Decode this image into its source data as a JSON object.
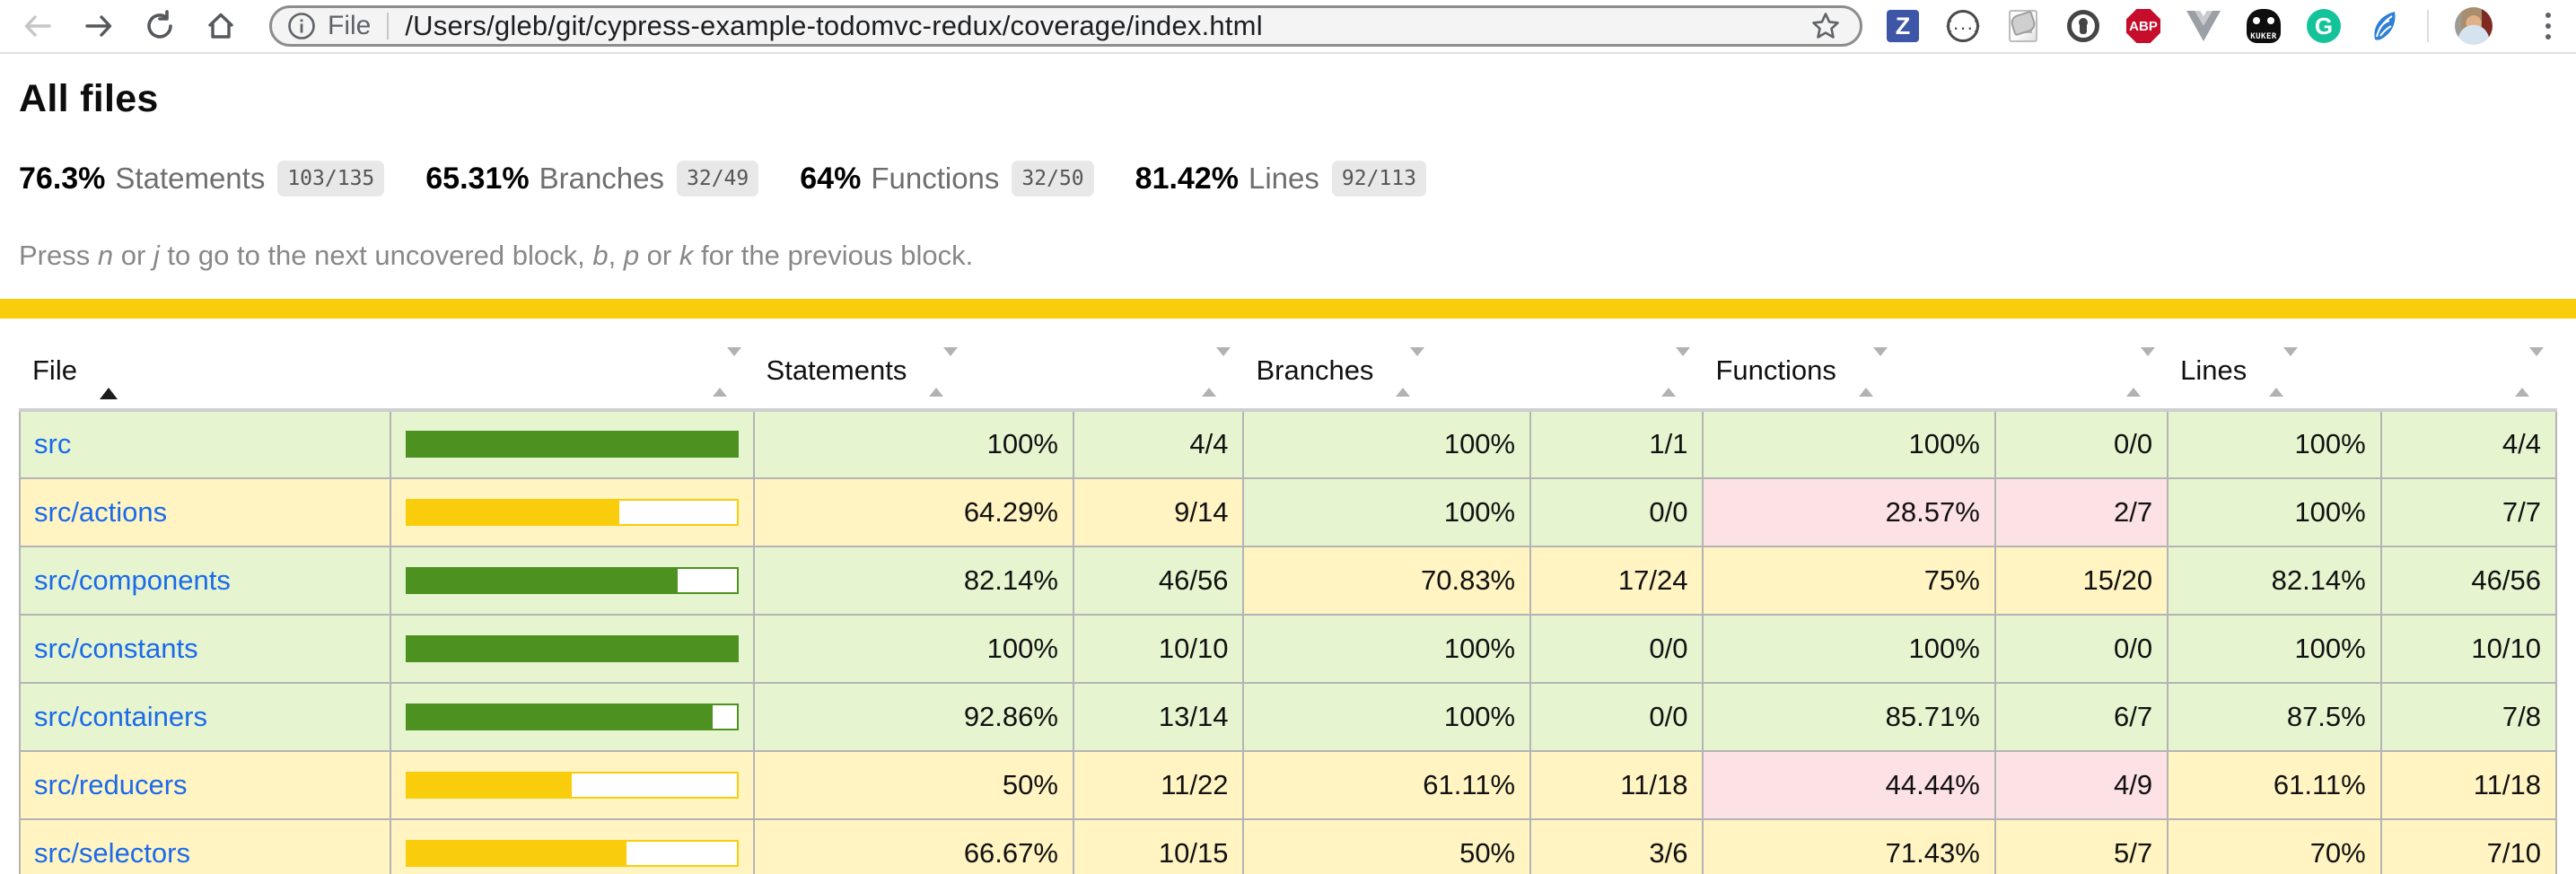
{
  "browser": {
    "address_bar": {
      "scheme_label": "File",
      "url": "/Users/gleb/git/cypress-example-todomvc-redux/coverage/index.html"
    },
    "extensions": {
      "zotero_letter": "Z",
      "json_viewer_glyph": "{...}",
      "abp_label": "ABP",
      "kuker_label": "KUKER",
      "grammarly_letter": "G"
    }
  },
  "page": {
    "title": "All files",
    "summary": [
      {
        "pct": "76.3%",
        "label": "Statements",
        "fraction": "103/135"
      },
      {
        "pct": "65.31%",
        "label": "Branches",
        "fraction": "32/49"
      },
      {
        "pct": "64%",
        "label": "Functions",
        "fraction": "32/50"
      },
      {
        "pct": "81.42%",
        "label": "Lines",
        "fraction": "92/113"
      }
    ],
    "hint_segments": [
      {
        "text": "Press "
      },
      {
        "text": "n",
        "italic": true
      },
      {
        "text": " or "
      },
      {
        "text": "j",
        "italic": true
      },
      {
        "text": " to go to the next uncovered block, "
      },
      {
        "text": "b",
        "italic": true
      },
      {
        "text": ", "
      },
      {
        "text": "p",
        "italic": true
      },
      {
        "text": " or "
      },
      {
        "text": "k",
        "italic": true
      },
      {
        "text": " for the previous block."
      }
    ],
    "table": {
      "headers": [
        "File",
        "Statements",
        "Branches",
        "Functions",
        "Lines"
      ],
      "rows": [
        {
          "file": "src",
          "level": "high",
          "bar_pct": 100,
          "metrics": {
            "statements": {
              "pct": "100%",
              "abs": "4/4",
              "level": "high"
            },
            "branches": {
              "pct": "100%",
              "abs": "1/1",
              "level": "high"
            },
            "functions": {
              "pct": "100%",
              "abs": "0/0",
              "level": "high"
            },
            "lines": {
              "pct": "100%",
              "abs": "4/4",
              "level": "high"
            }
          }
        },
        {
          "file": "src/actions",
          "level": "medium",
          "bar_pct": 64.29,
          "metrics": {
            "statements": {
              "pct": "64.29%",
              "abs": "9/14",
              "level": "medium"
            },
            "branches": {
              "pct": "100%",
              "abs": "0/0",
              "level": "high"
            },
            "functions": {
              "pct": "28.57%",
              "abs": "2/7",
              "level": "low"
            },
            "lines": {
              "pct": "100%",
              "abs": "7/7",
              "level": "high"
            }
          }
        },
        {
          "file": "src/components",
          "level": "high",
          "bar_pct": 82.14,
          "metrics": {
            "statements": {
              "pct": "82.14%",
              "abs": "46/56",
              "level": "high"
            },
            "branches": {
              "pct": "70.83%",
              "abs": "17/24",
              "level": "medium"
            },
            "functions": {
              "pct": "75%",
              "abs": "15/20",
              "level": "medium"
            },
            "lines": {
              "pct": "82.14%",
              "abs": "46/56",
              "level": "high"
            }
          }
        },
        {
          "file": "src/constants",
          "level": "high",
          "bar_pct": 100,
          "metrics": {
            "statements": {
              "pct": "100%",
              "abs": "10/10",
              "level": "high"
            },
            "branches": {
              "pct": "100%",
              "abs": "0/0",
              "level": "high"
            },
            "functions": {
              "pct": "100%",
              "abs": "0/0",
              "level": "high"
            },
            "lines": {
              "pct": "100%",
              "abs": "10/10",
              "level": "high"
            }
          }
        },
        {
          "file": "src/containers",
          "level": "high",
          "bar_pct": 92.86,
          "metrics": {
            "statements": {
              "pct": "92.86%",
              "abs": "13/14",
              "level": "high"
            },
            "branches": {
              "pct": "100%",
              "abs": "0/0",
              "level": "high"
            },
            "functions": {
              "pct": "85.71%",
              "abs": "6/7",
              "level": "high"
            },
            "lines": {
              "pct": "87.5%",
              "abs": "7/8",
              "level": "high"
            }
          }
        },
        {
          "file": "src/reducers",
          "level": "medium",
          "bar_pct": 50,
          "metrics": {
            "statements": {
              "pct": "50%",
              "abs": "11/22",
              "level": "medium"
            },
            "branches": {
              "pct": "61.11%",
              "abs": "11/18",
              "level": "medium"
            },
            "functions": {
              "pct": "44.44%",
              "abs": "4/9",
              "level": "low"
            },
            "lines": {
              "pct": "61.11%",
              "abs": "11/18",
              "level": "medium"
            }
          }
        },
        {
          "file": "src/selectors",
          "level": "medium",
          "bar_pct": 66.67,
          "metrics": {
            "statements": {
              "pct": "66.67%",
              "abs": "10/15",
              "level": "medium"
            },
            "branches": {
              "pct": "50%",
              "abs": "3/6",
              "level": "medium"
            },
            "functions": {
              "pct": "71.43%",
              "abs": "5/7",
              "level": "medium"
            },
            "lines": {
              "pct": "70%",
              "abs": "7/10",
              "level": "medium"
            }
          }
        }
      ]
    }
  },
  "colors": {
    "status_line": "#f9cd0b",
    "high_bg": "#e6f5d0",
    "medium_bg": "#fff4c2",
    "low_bg": "#fce1e5",
    "fill_high": "#4d9221",
    "fill_medium": "#f9cd0b",
    "link": "#1b6aec",
    "abp_red": "#c70d2c",
    "grammarly_green": "#15c39a",
    "zotero_blue": "#3e56a8"
  }
}
